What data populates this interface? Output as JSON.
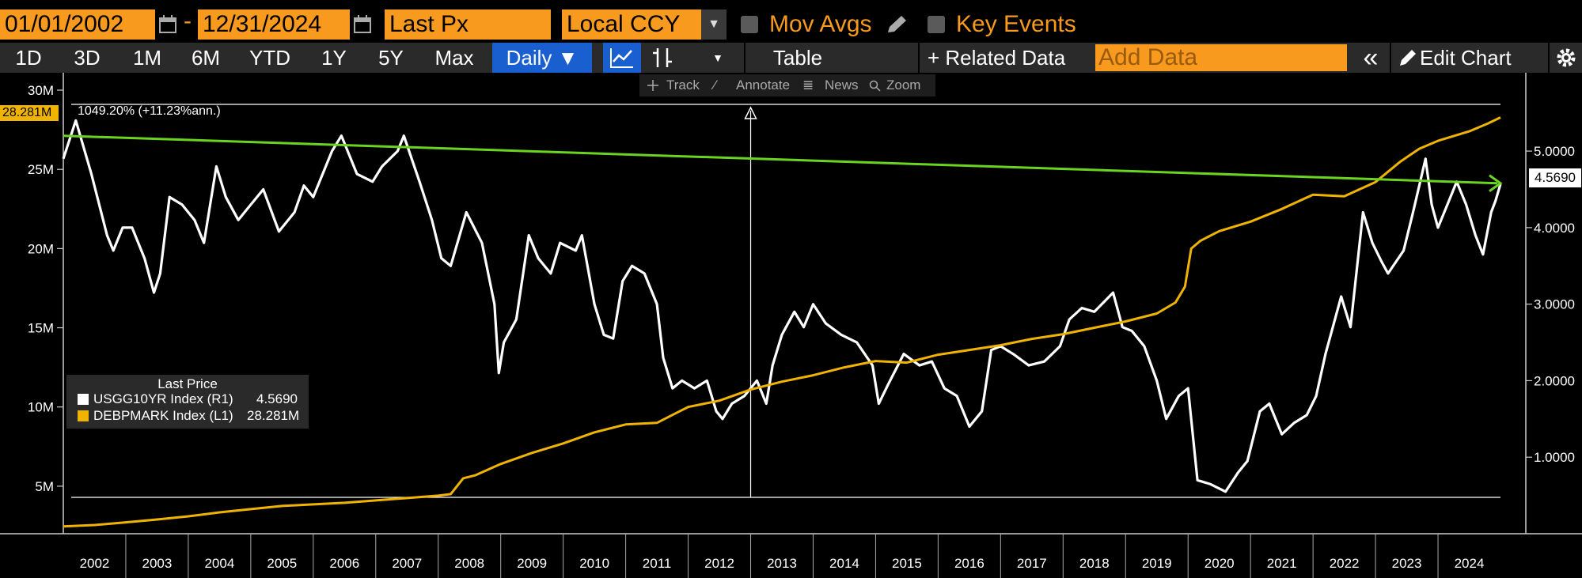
{
  "header": {
    "start_date": "01/01/2002",
    "end_date": "12/31/2024",
    "date_separator": "-",
    "field": "Last Px",
    "currency": "Local CCY",
    "mov_avgs": "Mov Avgs",
    "key_events": "Key Events"
  },
  "toolbar": {
    "range_1d": "1D",
    "range_3d": "3D",
    "range_1m": "1M",
    "range_6m": "6M",
    "range_ytd": "YTD",
    "range_1y": "1Y",
    "range_5y": "5Y",
    "range_max": "Max",
    "frequency": "Daily ▼",
    "table": "Table",
    "related_data": "+ Related Data",
    "add_data_placeholder": "Add Data",
    "collapse": "«",
    "edit_chart": "Edit Chart"
  },
  "tools": {
    "track": "Track",
    "annotate": "Annotate",
    "news": "News",
    "zoom": "Zoom"
  },
  "icons": [
    "calendar-icon",
    "chevron-down-icon",
    "pencil-icon",
    "line-chart-icon",
    "bar-chart-icon",
    "gear-icon",
    "crosshair-icon",
    "magnifier-icon"
  ],
  "legend": {
    "title": "Last Price",
    "series": [
      {
        "name": "USGG10YR Index  (R1)",
        "value": "4.5690",
        "color": "#ffffff"
      },
      {
        "name": "DEBPMARK Index  (L1)",
        "value": "28.281M",
        "color": "#f0b400"
      }
    ]
  },
  "performance_label": "1049.20% (+11.23%ann.)",
  "left_badge": "28.281M",
  "right_badge": "4.5690",
  "chart_data": {
    "type": "line",
    "x_axis": {
      "tick_labels": [
        "2002",
        "2003",
        "2004",
        "2005",
        "2006",
        "2007",
        "2008",
        "2009",
        "2010",
        "2011",
        "2012",
        "2013",
        "2014",
        "2015",
        "2016",
        "2017",
        "2018",
        "2019",
        "2020",
        "2021",
        "2022",
        "2023",
        "2024"
      ],
      "range": [
        2002.0,
        2025.0
      ]
    },
    "y_axis_left": {
      "tick_labels": [
        "5M",
        "10M",
        "15M",
        "20M",
        "25M",
        "30M"
      ],
      "ticks": [
        5,
        10,
        15,
        20,
        25,
        30
      ],
      "unit": "M",
      "range": [
        2.0,
        30.5
      ]
    },
    "y_axis_right": {
      "tick_labels": [
        "1.0000",
        "2.0000",
        "3.0000",
        "4.0000",
        "5.0000"
      ],
      "ticks": [
        1,
        2,
        3,
        4,
        5
      ],
      "range": [
        0.0,
        5.9
      ]
    },
    "series": [
      {
        "name": "USGG10YR Index  (R1)",
        "axis": "right",
        "color": "#ffffff",
        "points": [
          [
            2002.0,
            4.9
          ],
          [
            2002.2,
            5.4
          ],
          [
            2002.45,
            4.7
          ],
          [
            2002.7,
            3.9
          ],
          [
            2002.8,
            3.7
          ],
          [
            2002.95,
            4.0
          ],
          [
            2003.1,
            4.0
          ],
          [
            2003.3,
            3.6
          ],
          [
            2003.45,
            3.15
          ],
          [
            2003.55,
            3.4
          ],
          [
            2003.7,
            4.4
          ],
          [
            2003.9,
            4.3
          ],
          [
            2004.1,
            4.1
          ],
          [
            2004.25,
            3.8
          ],
          [
            2004.45,
            4.8
          ],
          [
            2004.6,
            4.4
          ],
          [
            2004.8,
            4.1
          ],
          [
            2005.0,
            4.3
          ],
          [
            2005.2,
            4.5
          ],
          [
            2005.45,
            3.95
          ],
          [
            2005.7,
            4.2
          ],
          [
            2005.85,
            4.55
          ],
          [
            2006.0,
            4.4
          ],
          [
            2006.3,
            5.0
          ],
          [
            2006.45,
            5.2
          ],
          [
            2006.7,
            4.7
          ],
          [
            2006.95,
            4.6
          ],
          [
            2007.1,
            4.8
          ],
          [
            2007.35,
            5.0
          ],
          [
            2007.45,
            5.2
          ],
          [
            2007.7,
            4.6
          ],
          [
            2007.9,
            4.1
          ],
          [
            2008.05,
            3.6
          ],
          [
            2008.2,
            3.5
          ],
          [
            2008.45,
            4.2
          ],
          [
            2008.7,
            3.8
          ],
          [
            2008.9,
            3.0
          ],
          [
            2008.97,
            2.1
          ],
          [
            2009.05,
            2.5
          ],
          [
            2009.25,
            2.8
          ],
          [
            2009.45,
            3.9
          ],
          [
            2009.6,
            3.6
          ],
          [
            2009.8,
            3.4
          ],
          [
            2009.95,
            3.8
          ],
          [
            2010.2,
            3.7
          ],
          [
            2010.3,
            3.9
          ],
          [
            2010.5,
            3.0
          ],
          [
            2010.65,
            2.6
          ],
          [
            2010.8,
            2.55
          ],
          [
            2010.95,
            3.3
          ],
          [
            2011.1,
            3.5
          ],
          [
            2011.3,
            3.4
          ],
          [
            2011.5,
            3.0
          ],
          [
            2011.6,
            2.3
          ],
          [
            2011.75,
            1.9
          ],
          [
            2011.9,
            2.0
          ],
          [
            2012.1,
            1.9
          ],
          [
            2012.3,
            2.0
          ],
          [
            2012.45,
            1.6
          ],
          [
            2012.55,
            1.5
          ],
          [
            2012.7,
            1.7
          ],
          [
            2012.9,
            1.8
          ],
          [
            2013.1,
            2.0
          ],
          [
            2013.25,
            1.7
          ],
          [
            2013.35,
            2.2
          ],
          [
            2013.5,
            2.6
          ],
          [
            2013.7,
            2.9
          ],
          [
            2013.85,
            2.7
          ],
          [
            2014.0,
            3.0
          ],
          [
            2014.2,
            2.75
          ],
          [
            2014.45,
            2.6
          ],
          [
            2014.7,
            2.5
          ],
          [
            2014.95,
            2.2
          ],
          [
            2015.05,
            1.7
          ],
          [
            2015.2,
            1.95
          ],
          [
            2015.45,
            2.35
          ],
          [
            2015.7,
            2.2
          ],
          [
            2015.9,
            2.25
          ],
          [
            2016.1,
            1.9
          ],
          [
            2016.3,
            1.8
          ],
          [
            2016.5,
            1.4
          ],
          [
            2016.7,
            1.6
          ],
          [
            2016.85,
            2.4
          ],
          [
            2017.0,
            2.45
          ],
          [
            2017.2,
            2.35
          ],
          [
            2017.45,
            2.2
          ],
          [
            2017.7,
            2.25
          ],
          [
            2017.95,
            2.45
          ],
          [
            2018.1,
            2.8
          ],
          [
            2018.3,
            2.95
          ],
          [
            2018.5,
            2.9
          ],
          [
            2018.8,
            3.15
          ],
          [
            2018.95,
            2.7
          ],
          [
            2019.1,
            2.65
          ],
          [
            2019.3,
            2.45
          ],
          [
            2019.5,
            2.0
          ],
          [
            2019.65,
            1.5
          ],
          [
            2019.85,
            1.8
          ],
          [
            2020.0,
            1.9
          ],
          [
            2020.15,
            0.7
          ],
          [
            2020.35,
            0.65
          ],
          [
            2020.6,
            0.55
          ],
          [
            2020.8,
            0.8
          ],
          [
            2020.95,
            0.95
          ],
          [
            2021.15,
            1.6
          ],
          [
            2021.3,
            1.7
          ],
          [
            2021.5,
            1.3
          ],
          [
            2021.7,
            1.45
          ],
          [
            2021.9,
            1.55
          ],
          [
            2022.05,
            1.8
          ],
          [
            2022.2,
            2.35
          ],
          [
            2022.45,
            3.1
          ],
          [
            2022.6,
            2.7
          ],
          [
            2022.8,
            4.2
          ],
          [
            2022.95,
            3.8
          ],
          [
            2023.1,
            3.55
          ],
          [
            2023.2,
            3.4
          ],
          [
            2023.45,
            3.7
          ],
          [
            2023.6,
            4.2
          ],
          [
            2023.8,
            4.9
          ],
          [
            2023.9,
            4.3
          ],
          [
            2024.0,
            4.0
          ],
          [
            2024.15,
            4.3
          ],
          [
            2024.3,
            4.6
          ],
          [
            2024.45,
            4.3
          ],
          [
            2024.6,
            3.9
          ],
          [
            2024.72,
            3.65
          ],
          [
            2024.85,
            4.2
          ],
          [
            2024.92,
            4.35
          ],
          [
            2025.0,
            4.569
          ]
        ]
      },
      {
        "name": "DEBPMARK Index  (L1)",
        "axis": "left",
        "color": "#f0b400",
        "points": [
          [
            2002.0,
            2.46
          ],
          [
            2002.5,
            2.55
          ],
          [
            2003.0,
            2.72
          ],
          [
            2003.5,
            2.9
          ],
          [
            2004.0,
            3.1
          ],
          [
            2004.5,
            3.35
          ],
          [
            2005.0,
            3.55
          ],
          [
            2005.5,
            3.75
          ],
          [
            2006.0,
            3.85
          ],
          [
            2006.5,
            3.95
          ],
          [
            2007.0,
            4.1
          ],
          [
            2007.5,
            4.25
          ],
          [
            2008.0,
            4.4
          ],
          [
            2008.2,
            4.5
          ],
          [
            2008.4,
            5.5
          ],
          [
            2008.6,
            5.7
          ],
          [
            2009.0,
            6.4
          ],
          [
            2009.5,
            7.1
          ],
          [
            2010.0,
            7.7
          ],
          [
            2010.5,
            8.4
          ],
          [
            2011.0,
            8.9
          ],
          [
            2011.5,
            9.0
          ],
          [
            2011.8,
            9.6
          ],
          [
            2012.0,
            10.0
          ],
          [
            2012.5,
            10.4
          ],
          [
            2013.0,
            11.1
          ],
          [
            2013.5,
            11.6
          ],
          [
            2014.0,
            12.0
          ],
          [
            2014.5,
            12.5
          ],
          [
            2015.0,
            12.9
          ],
          [
            2015.5,
            12.8
          ],
          [
            2016.0,
            13.3
          ],
          [
            2016.5,
            13.6
          ],
          [
            2017.0,
            13.9
          ],
          [
            2017.5,
            14.3
          ],
          [
            2018.0,
            14.6
          ],
          [
            2018.5,
            15.0
          ],
          [
            2019.0,
            15.4
          ],
          [
            2019.5,
            15.9
          ],
          [
            2019.8,
            16.6
          ],
          [
            2019.95,
            17.6
          ],
          [
            2020.05,
            20.0
          ],
          [
            2020.2,
            20.5
          ],
          [
            2020.5,
            21.1
          ],
          [
            2021.0,
            21.7
          ],
          [
            2021.5,
            22.5
          ],
          [
            2022.0,
            23.4
          ],
          [
            2022.5,
            23.3
          ],
          [
            2023.0,
            24.2
          ],
          [
            2023.4,
            25.5
          ],
          [
            2023.7,
            26.3
          ],
          [
            2024.0,
            26.8
          ],
          [
            2024.5,
            27.4
          ],
          [
            2024.8,
            27.9
          ],
          [
            2025.0,
            28.281
          ]
        ]
      }
    ],
    "trend_line": {
      "axis": "right",
      "color": "#6ad41e",
      "from": [
        2002.0,
        5.2
      ],
      "to": [
        2025.0,
        4.58
      ]
    },
    "reference_line": {
      "color": "#ffffff",
      "x": 2013.0
    },
    "grid": false
  }
}
